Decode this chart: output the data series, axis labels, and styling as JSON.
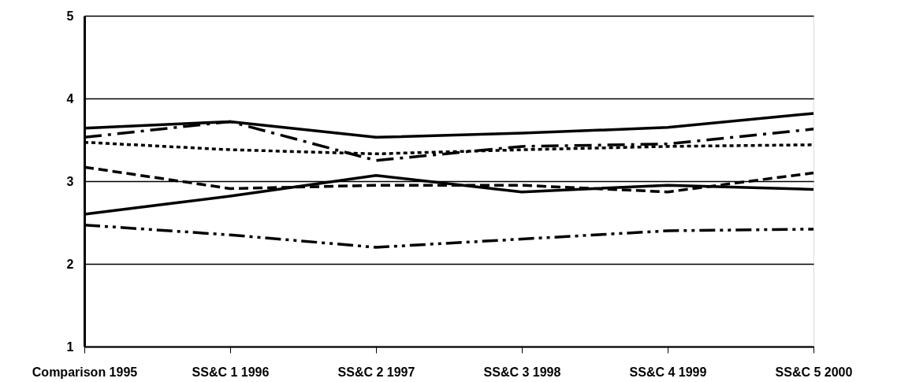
{
  "chart_data": {
    "type": "line",
    "categories": [
      "Comparison 1995",
      "SS&C 1 1996",
      "SS&C 2 1997",
      "SS&C 3 1998",
      "SS&C 4 1999",
      "SS&C 5 2000"
    ],
    "series": [
      {
        "color": "#000000",
        "line_style": "solid",
        "values": [
          3.64,
          3.72,
          3.53,
          3.58,
          3.65,
          3.82
        ]
      },
      {
        "color": "#000000",
        "line_style": "dashdot",
        "values": [
          3.53,
          3.72,
          3.25,
          3.42,
          3.45,
          3.63
        ]
      },
      {
        "color": "#000000",
        "line_style": "dotted",
        "values": [
          3.47,
          3.38,
          3.33,
          3.38,
          3.42,
          3.44
        ]
      },
      {
        "color": "#000000",
        "line_style": "dashed",
        "values": [
          3.17,
          2.91,
          2.95,
          2.95,
          2.87,
          3.1
        ]
      },
      {
        "color": "#000000",
        "line_style": "solid",
        "values": [
          2.6,
          2.82,
          3.07,
          2.87,
          2.95,
          2.9
        ]
      },
      {
        "color": "#000000",
        "line_style": "dashdotdot",
        "values": [
          2.47,
          2.35,
          2.2,
          2.3,
          2.4,
          2.42
        ]
      }
    ],
    "ylim": [
      1,
      5
    ],
    "yticks": [
      1,
      2,
      3,
      4,
      5
    ],
    "grid": "y",
    "marker": "none"
  }
}
